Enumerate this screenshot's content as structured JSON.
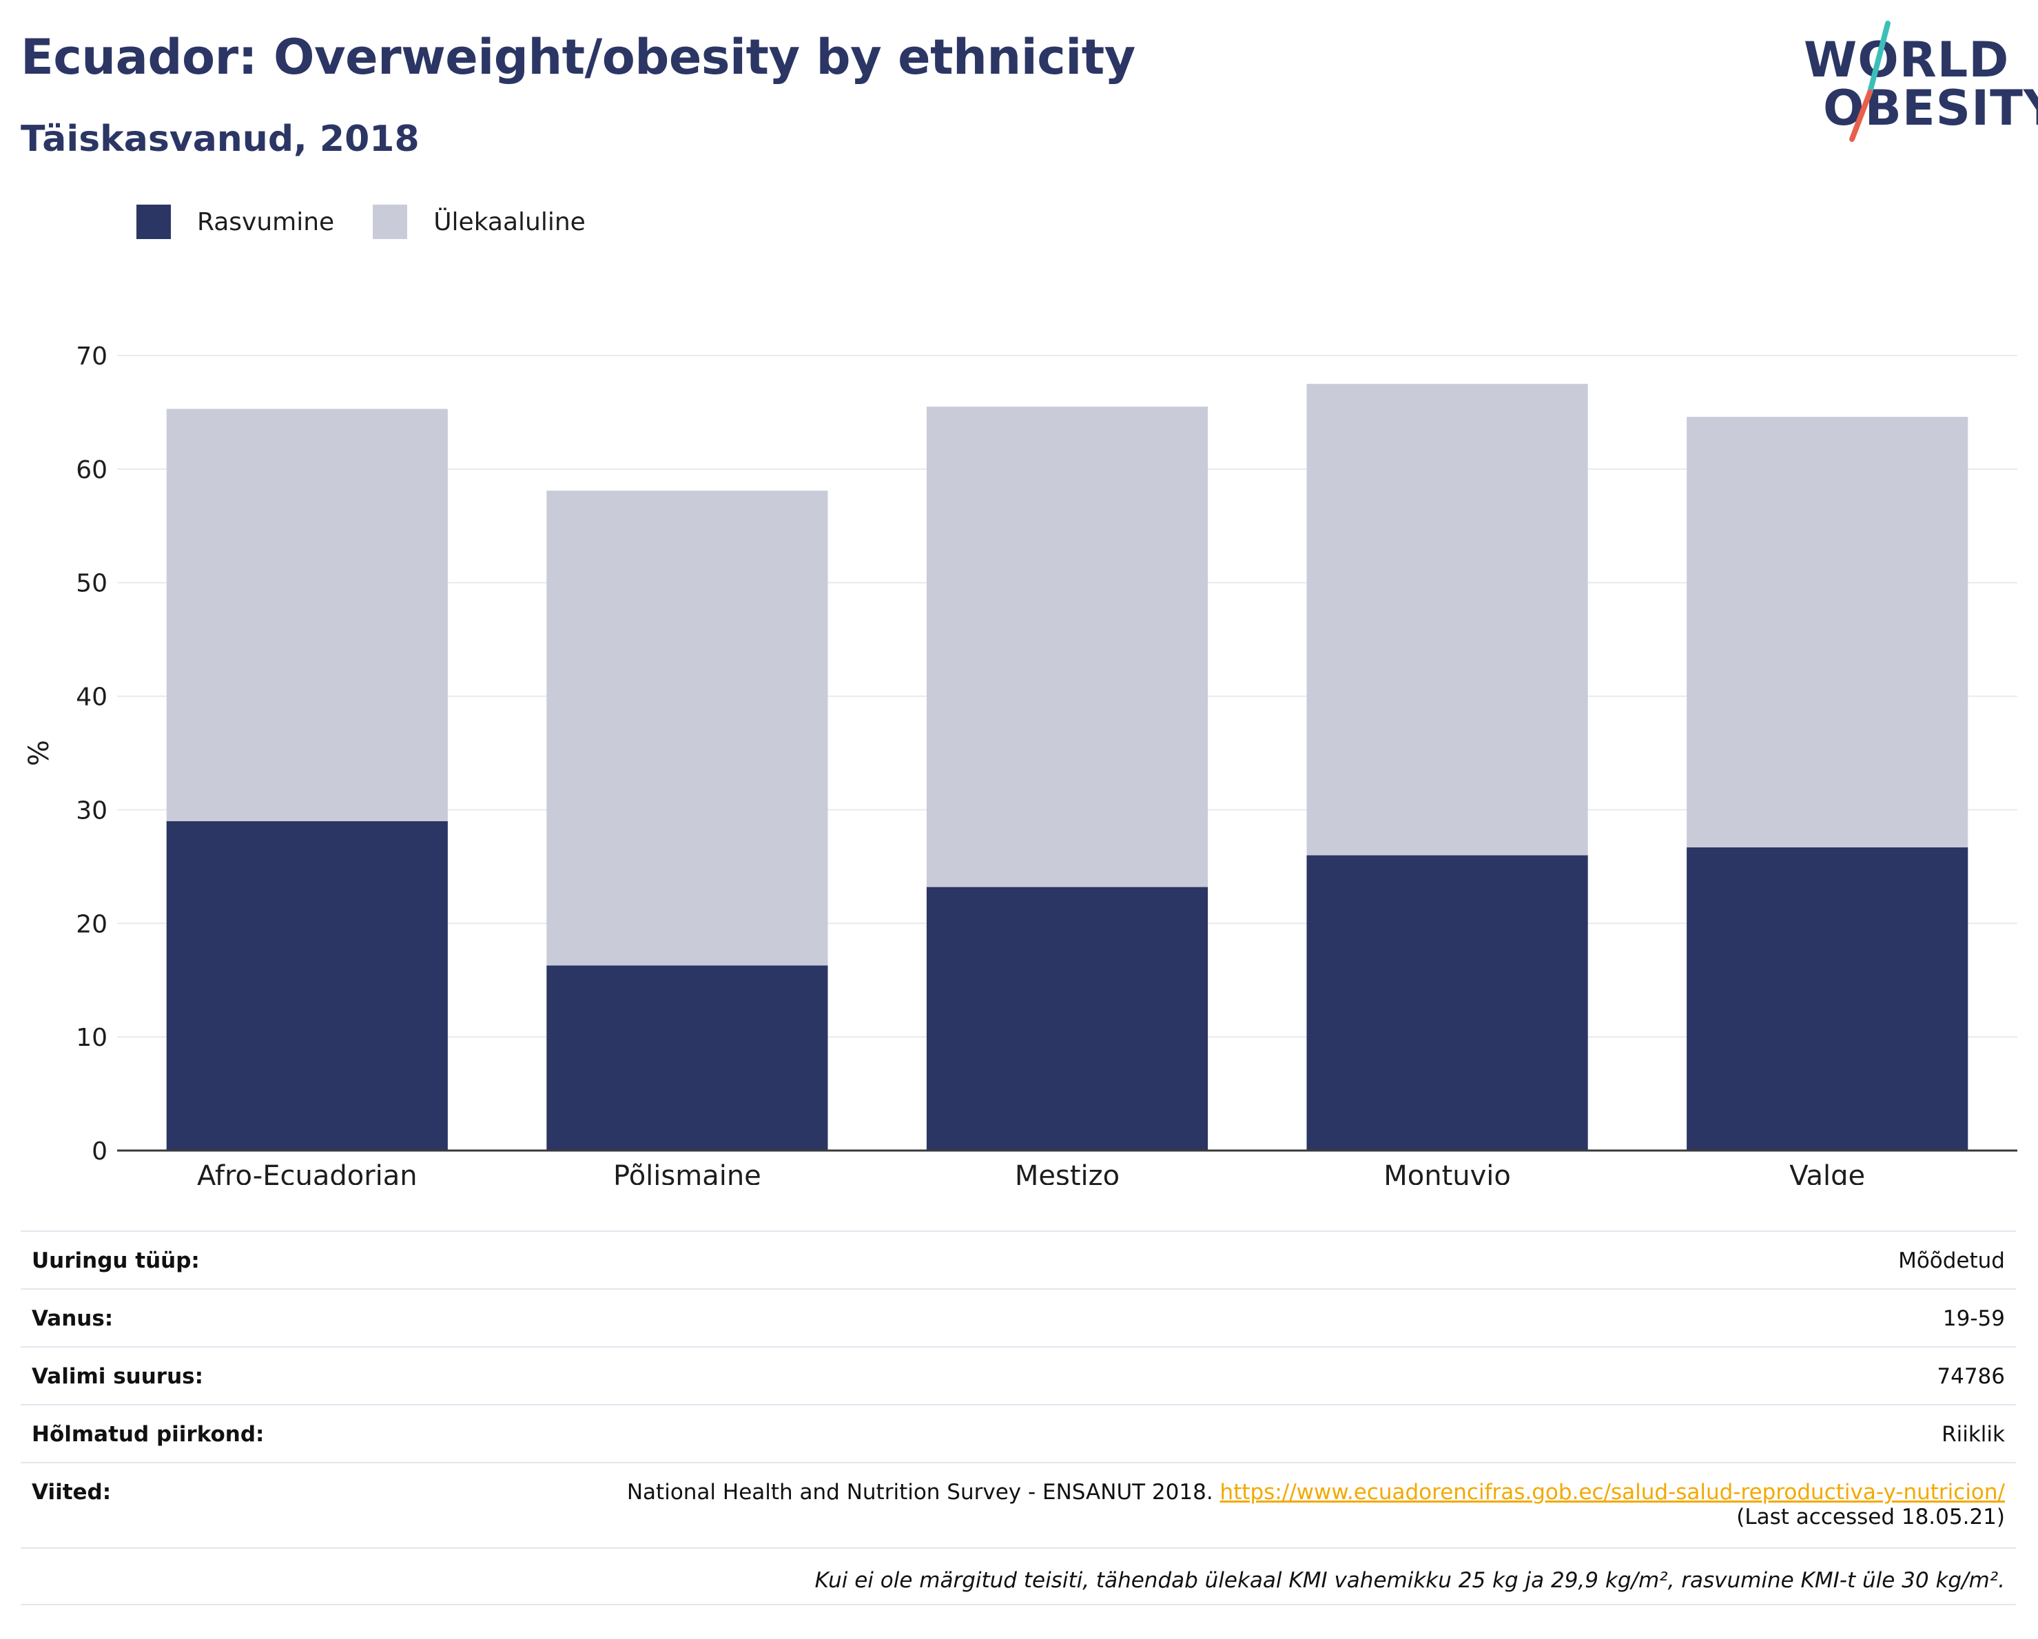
{
  "header": {
    "title": "Ecuador: Overweight/obesity by ethnicity",
    "subtitle": "Täiskasvanud, 2018"
  },
  "logo": {
    "line1": "WORLD",
    "line2": "OBESITY",
    "slash_colors": [
      "#3bbfb8",
      "#e8604c"
    ]
  },
  "legend": [
    {
      "label": "Rasvumine",
      "color": "#2b3664"
    },
    {
      "label": "Ülekaaluline",
      "color": "#c9ccd8"
    }
  ],
  "chart_data": {
    "type": "bar",
    "stacked": true,
    "categories": [
      "Afro-Ecuadorian",
      "Põlismaine",
      "Mestizo",
      "Montuvio",
      "Valge"
    ],
    "series": [
      {
        "name": "Rasvumine",
        "color": "#2b3664",
        "values": [
          29.0,
          16.3,
          23.2,
          26.0,
          26.7
        ]
      },
      {
        "name": "Ülekaaluline",
        "color": "#c9ccd8",
        "values": [
          36.3,
          41.8,
          42.3,
          41.5,
          37.9
        ]
      }
    ],
    "ylabel": "%",
    "ylim": [
      0,
      70
    ],
    "yticks": [
      0,
      10,
      20,
      30,
      40,
      50,
      60,
      70
    ],
    "grid": true
  },
  "info": {
    "rows": [
      {
        "label": "Uuringu tüüp:",
        "value": "Mõõdetud"
      },
      {
        "label": "Vanus:",
        "value": "19-59"
      },
      {
        "label": "Valimi suurus:",
        "value": "74786"
      },
      {
        "label": "Hõlmatud piirkond:",
        "value": "Riiklik"
      }
    ],
    "reference": {
      "label": "Viited:",
      "text": "National Health and Nutrition Survey - ENSANUT 2018. ",
      "link": "https://www.ecuadorencifras.gob.ec/salud-salud-reproductiva-y-nutricion/",
      "accessed": "(Last accessed 18.05.21)"
    },
    "footnote": "Kui ei ole märgitud teisiti, tähendab ülekaal KMI vahemikku 25 kg ja 29,9 kg/m², rasvumine KMI-t üle 30 kg/m²."
  }
}
